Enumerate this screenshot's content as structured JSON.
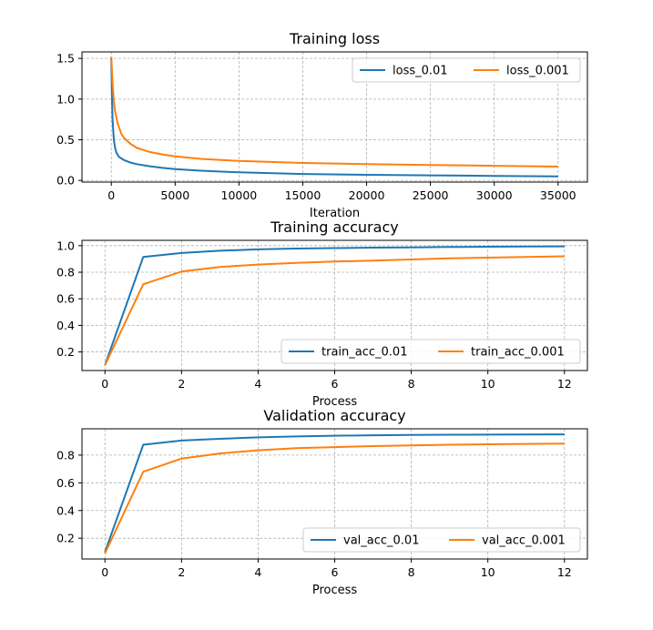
{
  "colors": {
    "series_a": "#1f77b4",
    "series_b": "#ff7f0e"
  },
  "chart_data": [
    {
      "type": "line",
      "title": "Training loss",
      "xlabel": "Iteration",
      "ylabel": "",
      "xlim": [
        -2300,
        37300
      ],
      "ylim": [
        -0.02,
        1.58
      ],
      "xticks": [
        0,
        5000,
        10000,
        15000,
        20000,
        25000,
        30000,
        35000
      ],
      "yticks": [
        0.0,
        0.5,
        1.0,
        1.5
      ],
      "xtick_labels": [
        "0",
        "5000",
        "10000",
        "15000",
        "20000",
        "25000",
        "30000",
        "35000"
      ],
      "ytick_labels": [
        "0.0",
        "0.5",
        "1.0",
        "1.5"
      ],
      "grid": true,
      "legend": {
        "position": "top-right",
        "columns": 2
      },
      "series": [
        {
          "name": "loss_0.01",
          "x": [
            0,
            50,
            100,
            200,
            300,
            400,
            600,
            800,
            1000,
            1500,
            2000,
            3000,
            4000,
            5000,
            7000,
            10000,
            15000,
            20000,
            25000,
            30000,
            35000
          ],
          "y": [
            1.5,
            1.05,
            0.75,
            0.5,
            0.4,
            0.34,
            0.29,
            0.27,
            0.25,
            0.22,
            0.2,
            0.175,
            0.155,
            0.14,
            0.12,
            0.1,
            0.08,
            0.07,
            0.063,
            0.056,
            0.05
          ]
        },
        {
          "name": "loss_0.001",
          "x": [
            0,
            100,
            200,
            300,
            500,
            800,
            1000,
            1500,
            2000,
            3000,
            4000,
            5000,
            7000,
            10000,
            15000,
            20000,
            25000,
            30000,
            35000
          ],
          "y": [
            1.52,
            1.2,
            0.98,
            0.85,
            0.7,
            0.57,
            0.52,
            0.45,
            0.4,
            0.35,
            0.32,
            0.295,
            0.265,
            0.24,
            0.215,
            0.2,
            0.19,
            0.18,
            0.17
          ]
        }
      ]
    },
    {
      "type": "line",
      "title": "Training accuracy",
      "xlabel": "Process",
      "ylabel": "",
      "xlim": [
        -0.6,
        12.6
      ],
      "ylim": [
        0.06,
        1.04
      ],
      "xticks": [
        0,
        2,
        4,
        6,
        8,
        10,
        12
      ],
      "yticks": [
        0.2,
        0.4,
        0.6,
        0.8,
        1.0
      ],
      "xtick_labels": [
        "0",
        "2",
        "4",
        "6",
        "8",
        "10",
        "12"
      ],
      "ytick_labels": [
        "0.2",
        "0.4",
        "0.6",
        "0.8",
        "1.0"
      ],
      "grid": true,
      "legend": {
        "position": "bottom-right",
        "columns": 2
      },
      "series": [
        {
          "name": "train_acc_0.01",
          "x": [
            0,
            1,
            2,
            3,
            4,
            5,
            6,
            7,
            8,
            9,
            10,
            11,
            12
          ],
          "y": [
            0.1,
            0.915,
            0.945,
            0.962,
            0.972,
            0.978,
            0.982,
            0.985,
            0.987,
            0.99,
            0.992,
            0.994,
            0.995
          ]
        },
        {
          "name": "train_acc_0.001",
          "x": [
            0,
            1,
            2,
            3,
            4,
            5,
            6,
            7,
            8,
            9,
            10,
            11,
            12
          ],
          "y": [
            0.1,
            0.71,
            0.805,
            0.84,
            0.858,
            0.87,
            0.88,
            0.888,
            0.896,
            0.905,
            0.91,
            0.915,
            0.92
          ]
        }
      ]
    },
    {
      "type": "line",
      "title": "Validation accuracy",
      "xlabel": "Process",
      "ylabel": "",
      "xlim": [
        -0.6,
        12.6
      ],
      "ylim": [
        0.05,
        0.99
      ],
      "xticks": [
        0,
        2,
        4,
        6,
        8,
        10,
        12
      ],
      "yticks": [
        0.2,
        0.4,
        0.6,
        0.8
      ],
      "xtick_labels": [
        "0",
        "2",
        "4",
        "6",
        "8",
        "10",
        "12"
      ],
      "ytick_labels": [
        "0.2",
        "0.4",
        "0.6",
        "0.8"
      ],
      "grid": true,
      "legend": {
        "position": "bottom-right",
        "columns": 2
      },
      "series": [
        {
          "name": "val_acc_0.01",
          "x": [
            0,
            1,
            2,
            3,
            4,
            5,
            6,
            7,
            8,
            9,
            10,
            11,
            12
          ],
          "y": [
            0.1,
            0.875,
            0.905,
            0.918,
            0.928,
            0.935,
            0.94,
            0.943,
            0.945,
            0.947,
            0.948,
            0.949,
            0.95
          ]
        },
        {
          "name": "val_acc_0.001",
          "x": [
            0,
            1,
            2,
            3,
            4,
            5,
            6,
            7,
            8,
            9,
            10,
            11,
            12
          ],
          "y": [
            0.09,
            0.68,
            0.775,
            0.812,
            0.835,
            0.85,
            0.858,
            0.865,
            0.87,
            0.875,
            0.878,
            0.881,
            0.883
          ]
        }
      ]
    }
  ]
}
